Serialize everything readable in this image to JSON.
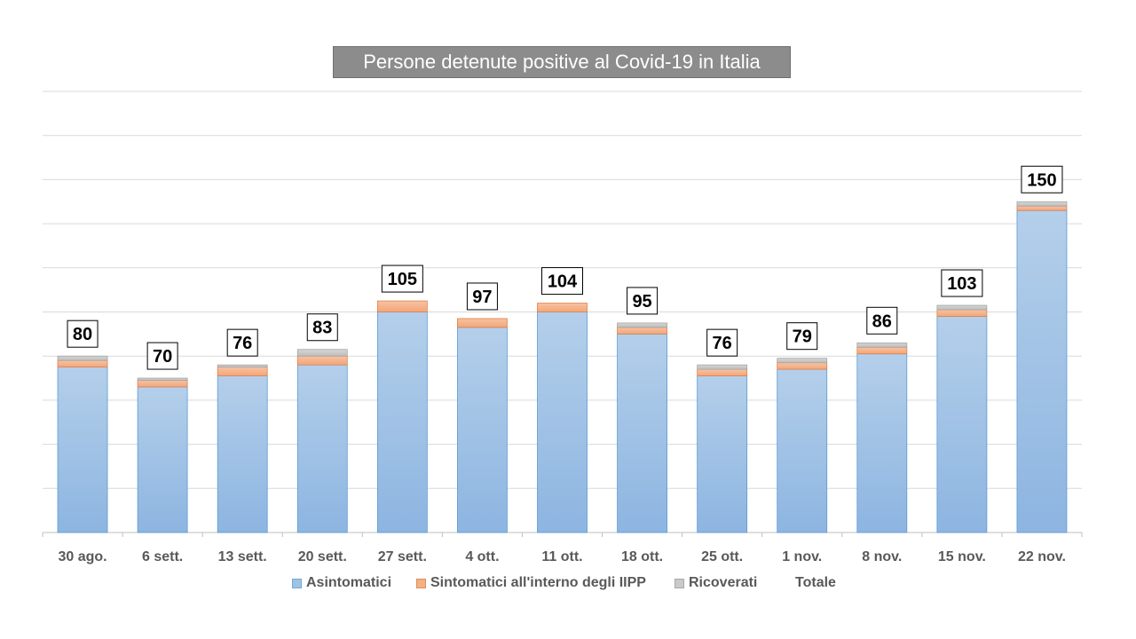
{
  "chart_data": {
    "type": "bar",
    "stacked": true,
    "title": "Persone detenute positive al Covid-19 in Italia",
    "categories": [
      "30 ago.",
      "6 sett.",
      "13 sett.",
      "20 sett.",
      "27 sett.",
      "4 ott.",
      "11 ott.",
      "18 ott.",
      "25 ott.",
      "1 nov.",
      "8 nov.",
      "15 nov.",
      "22 nov."
    ],
    "series": [
      {
        "name": "Asintomatici",
        "color": "#9dc3e6",
        "values": [
          75,
          66,
          71,
          76,
          100,
          93,
          100,
          90,
          71,
          74,
          81,
          98,
          146
        ]
      },
      {
        "name": "Sintomatici all'interno degli IIPP",
        "color": "#f4b183",
        "values": [
          3,
          3,
          4,
          4,
          5,
          4,
          4,
          3,
          3,
          3,
          3,
          3,
          2
        ]
      },
      {
        "name": "Ricoverati",
        "color": "#c9c9c9",
        "values": [
          2,
          1,
          1,
          3,
          0,
          0,
          0,
          2,
          2,
          2,
          2,
          2,
          2
        ]
      }
    ],
    "totals": {
      "name": "Totale",
      "values": [
        80,
        70,
        76,
        83,
        105,
        97,
        104,
        95,
        76,
        79,
        86,
        103,
        150
      ]
    },
    "ylim": [
      0,
      200
    ],
    "grid": true,
    "legend": "bottom"
  }
}
